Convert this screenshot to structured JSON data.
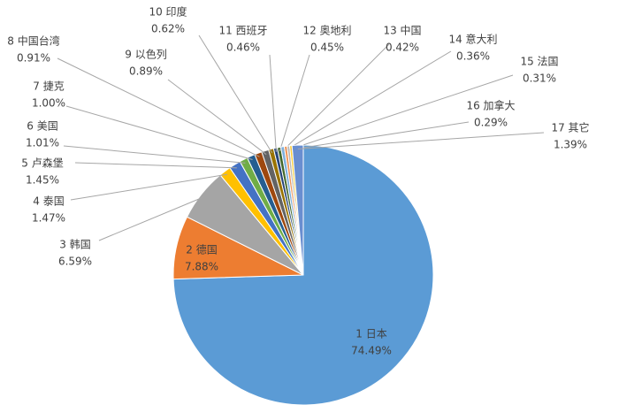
{
  "chart_data": {
    "type": "pie",
    "categories": [
      "1 日本",
      "2 德国",
      "3 韩国",
      "4 泰国",
      "5 卢森堡",
      "6 美国",
      "7 捷克",
      "8 中国台湾",
      "9 以色列",
      "10 印度",
      "11 西班牙",
      "12 奥地利",
      "13 中国",
      "14 意大利",
      "15 法国",
      "16 加拿大",
      "17 其它"
    ],
    "values": [
      74.49,
      7.88,
      6.59,
      1.47,
      1.45,
      1.01,
      1.0,
      0.91,
      0.89,
      0.62,
      0.46,
      0.45,
      0.42,
      0.36,
      0.31,
      0.29,
      1.39
    ],
    "value_labels": [
      "74.49%",
      "7.88%",
      "6.59%",
      "1.47%",
      "1.45%",
      "1.01%",
      "1.00%",
      "0.91%",
      "0.89%",
      "0.62%",
      "0.46%",
      "0.45%",
      "0.42%",
      "0.36%",
      "0.31%",
      "0.29%",
      "1.39%"
    ],
    "colors": [
      "#5b9bd5",
      "#ed7d31",
      "#a5a5a5",
      "#ffc000",
      "#4472c4",
      "#70ad47",
      "#255e91",
      "#9e480e",
      "#636363",
      "#997300",
      "#264478",
      "#43682b",
      "#7cafdd",
      "#f1975a",
      "#b7b7b7",
      "#ffcd33",
      "#698ed0"
    ]
  }
}
